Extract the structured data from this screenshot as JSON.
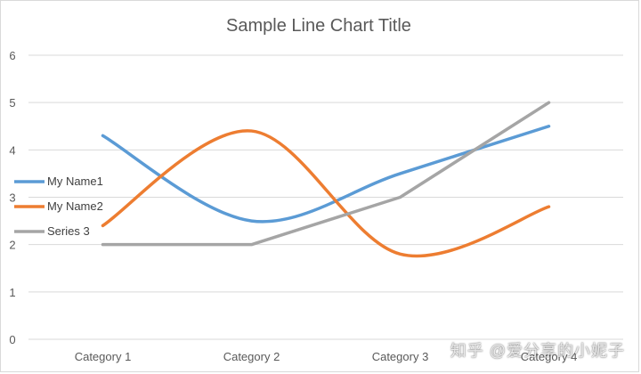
{
  "chart_data": {
    "type": "line",
    "title": "Sample Line Chart Title",
    "xlabel": "",
    "ylabel": "",
    "categories": [
      "Category 1",
      "Category 2",
      "Category 3",
      "Category 4"
    ],
    "ylim": [
      0,
      6
    ],
    "yticks": [
      "0",
      "1",
      "2",
      "3",
      "4",
      "5",
      "6"
    ],
    "grid": true,
    "legend_position": "left",
    "series": [
      {
        "name": "My Name1",
        "values": [
          4.3,
          2.5,
          3.5,
          4.5
        ],
        "color": "#5b9bd5",
        "smooth": true
      },
      {
        "name": "My Name2",
        "values": [
          2.4,
          4.4,
          1.8,
          2.8
        ],
        "color": "#ed7d31",
        "smooth": true
      },
      {
        "name": "Series 3",
        "values": [
          2.0,
          2.0,
          3.0,
          5.0
        ],
        "color": "#a5a5a5",
        "smooth": false
      }
    ]
  },
  "watermark": "知乎 @爱分享的小妮子"
}
